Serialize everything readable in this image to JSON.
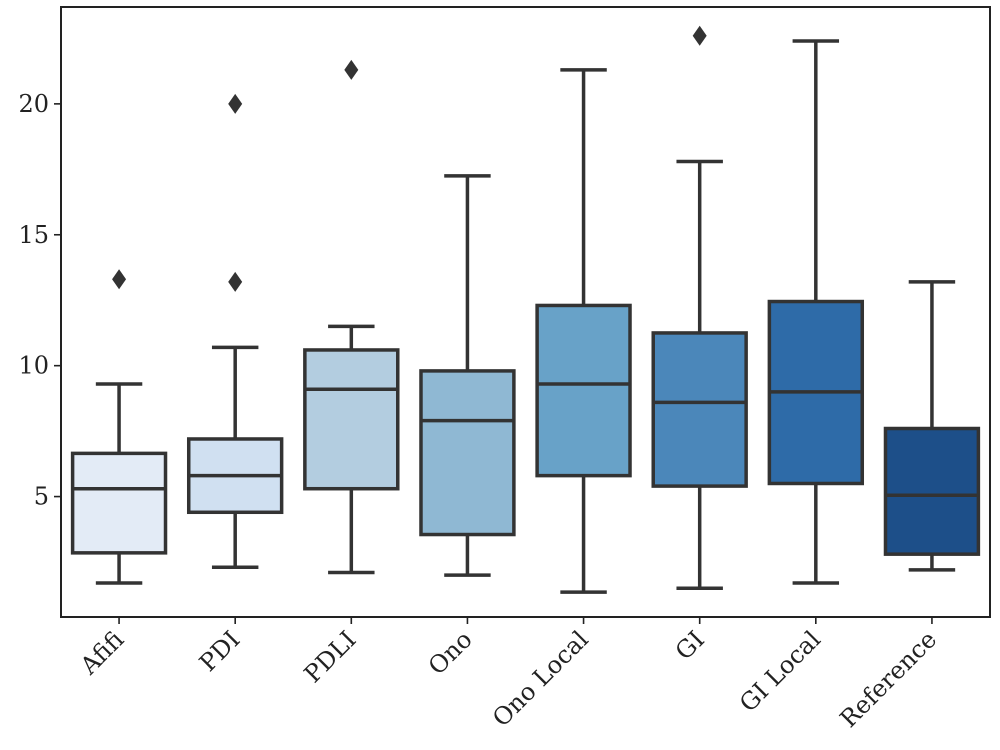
{
  "chart_data": {
    "type": "box",
    "title": "",
    "xlabel": "",
    "ylabel": "",
    "ylim": [
      0.4,
      23.7
    ],
    "yticks": [
      5,
      10,
      15,
      20
    ],
    "grid": false,
    "legend": "none",
    "categories": [
      "Afifi",
      "PDI",
      "PDLI",
      "Ono",
      "Ono Local",
      "GI",
      "GI Local",
      "Reference"
    ],
    "boxes": [
      {
        "whisker_low": 1.7,
        "q1": 2.85,
        "median": 5.3,
        "q3": 6.65,
        "whisker_high": 9.3,
        "outliers": [
          13.3
        ],
        "color": "#e3ebf6"
      },
      {
        "whisker_low": 2.3,
        "q1": 4.4,
        "median": 5.8,
        "q3": 7.2,
        "whisker_high": 10.7,
        "outliers": [
          13.2,
          20.0
        ],
        "color": "#d0e0f1"
      },
      {
        "whisker_low": 2.1,
        "q1": 5.3,
        "median": 9.1,
        "q3": 10.6,
        "whisker_high": 11.5,
        "outliers": [
          21.3
        ],
        "color": "#b3cde0"
      },
      {
        "whisker_low": 2.0,
        "q1": 3.55,
        "median": 7.9,
        "q3": 9.8,
        "whisker_high": 17.25,
        "outliers": [],
        "color": "#8fb8d3"
      },
      {
        "whisker_low": 1.35,
        "q1": 5.8,
        "median": 9.3,
        "q3": 12.3,
        "whisker_high": 21.3,
        "outliers": [],
        "color": "#68a2c8"
      },
      {
        "whisker_low": 1.5,
        "q1": 5.4,
        "median": 8.6,
        "q3": 11.25,
        "whisker_high": 17.8,
        "outliers": [
          22.6
        ],
        "color": "#4b87ba"
      },
      {
        "whisker_low": 1.7,
        "q1": 5.5,
        "median": 9.0,
        "q3": 12.45,
        "whisker_high": 22.4,
        "outliers": [],
        "color": "#2e6ba8"
      },
      {
        "whisker_low": 2.2,
        "q1": 2.8,
        "median": 5.05,
        "q3": 7.6,
        "whisker_high": 13.2,
        "outliers": [],
        "color": "#1d4f89"
      }
    ],
    "line_color": "#333333"
  }
}
